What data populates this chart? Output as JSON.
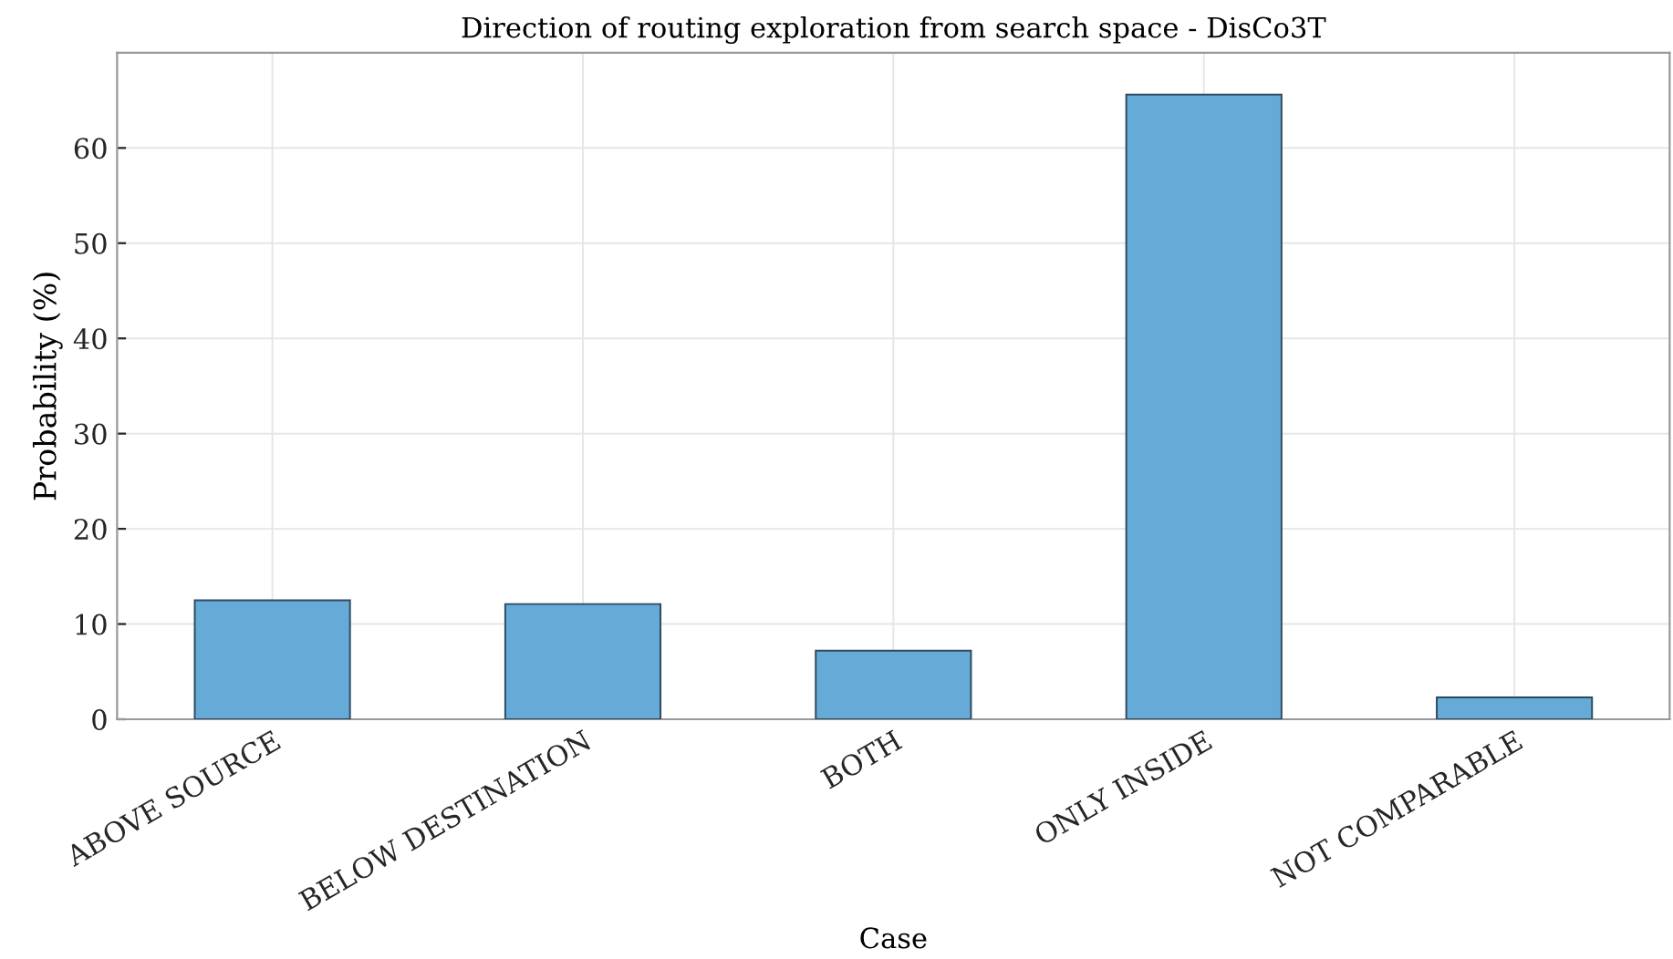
{
  "chart_data": {
    "type": "bar",
    "title": "Direction of routing exploration from search space - DisCo3T",
    "xlabel": "Case",
    "ylabel": "Probability (%)",
    "categories": [
      "ABOVE SOURCE",
      "BELOW DESTINATION",
      "BOTH",
      "ONLY INSIDE",
      "NOT COMPARABLE"
    ],
    "values": [
      12.5,
      12.1,
      7.2,
      65.6,
      2.3
    ],
    "color": "#66aad7",
    "ylim": [
      0,
      70
    ],
    "yticks": [
      0,
      10,
      20,
      30,
      40,
      50,
      60
    ],
    "grid": true
  }
}
